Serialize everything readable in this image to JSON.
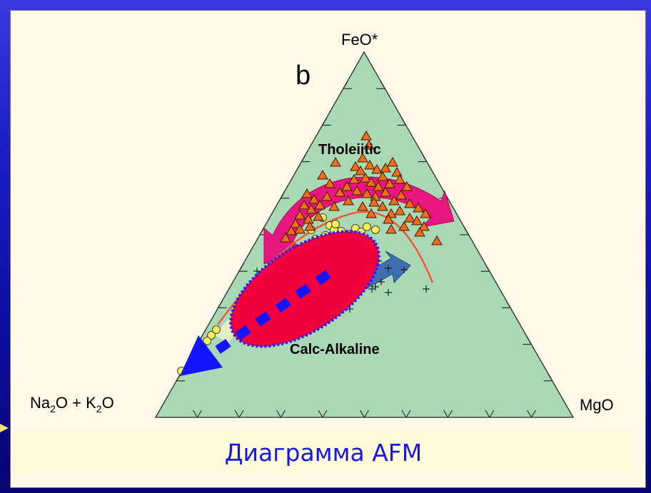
{
  "diagram": {
    "vertices": {
      "top": "FeO*",
      "left_main": "Na",
      "left_sub1": "2",
      "left_mid": "O + K",
      "left_sub2": "2",
      "left_end": "O",
      "right": "MgO"
    },
    "panel_letter": "b",
    "field_labels": {
      "upper": "Tholeiitic",
      "lower": "Calc-Alkaline"
    },
    "colors": {
      "triangle_fill": "#a9d8b4",
      "boundary_line": "#f05a36",
      "tholeiitic_arrow": "#e8167e",
      "calc_alkaline_arrow": "#3f6fb0",
      "ellipse_fill": "#f2003d",
      "ellipse_outline": "#2222ee",
      "trend_arrow": "#1414ff",
      "triangle_marker": "#f26d1a",
      "circle_marker": "#f6ef55"
    }
  },
  "caption": "Диаграмма AFM"
}
